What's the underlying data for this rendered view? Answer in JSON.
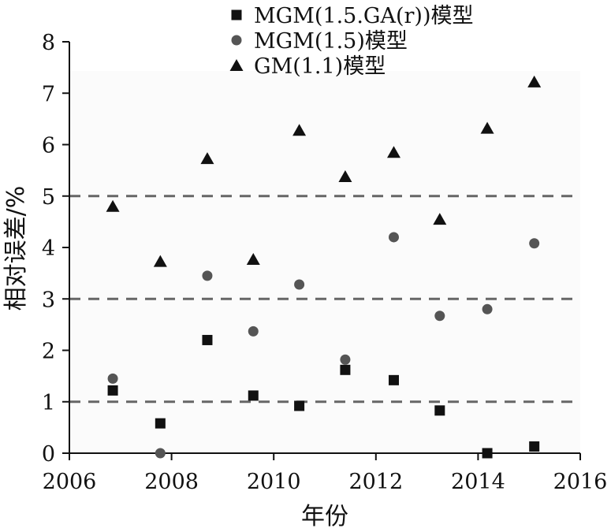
{
  "chart_data": {
    "type": "scatter",
    "title": "",
    "xlabel": "年份",
    "ylabel": "相对误差/%",
    "xlim": [
      2006,
      2016
    ],
    "ylim": [
      0,
      8
    ],
    "xticks": [
      "2006",
      "2008",
      "2010",
      "2012",
      "2014",
      "2016"
    ],
    "yticks": [
      "0",
      "1",
      "2",
      "3",
      "4",
      "5",
      "6",
      "7",
      "8"
    ],
    "reference_lines": [
      1,
      3,
      5
    ],
    "grid": false,
    "legend_position": "top",
    "series": [
      {
        "name": "MGM(1.5.GA(r))模型",
        "marker": "square",
        "color": "#111111",
        "x": [
          2006.85,
          2007.78,
          2008.7,
          2009.6,
          2010.5,
          2011.4,
          2012.35,
          2013.25,
          2014.18,
          2015.1
        ],
        "y": [
          1.22,
          0.58,
          2.2,
          1.12,
          0.92,
          1.62,
          1.42,
          0.83,
          0.0,
          0.13
        ]
      },
      {
        "name": "MGM(1.5)模型",
        "marker": "circle",
        "color": "#555555",
        "x": [
          2006.85,
          2007.78,
          2008.7,
          2009.6,
          2010.5,
          2011.4,
          2012.35,
          2013.25,
          2014.18,
          2015.1
        ],
        "y": [
          1.45,
          0.0,
          3.45,
          2.37,
          3.28,
          1.82,
          4.2,
          2.67,
          2.8,
          4.08
        ]
      },
      {
        "name": "GM(1.1)模型",
        "marker": "triangle",
        "color": "#111111",
        "x": [
          2006.85,
          2007.78,
          2008.7,
          2009.6,
          2010.5,
          2011.4,
          2012.35,
          2013.25,
          2014.18,
          2015.1
        ],
        "y": [
          4.8,
          3.73,
          5.73,
          3.77,
          6.28,
          5.38,
          5.85,
          4.55,
          6.32,
          7.22
        ]
      }
    ]
  }
}
